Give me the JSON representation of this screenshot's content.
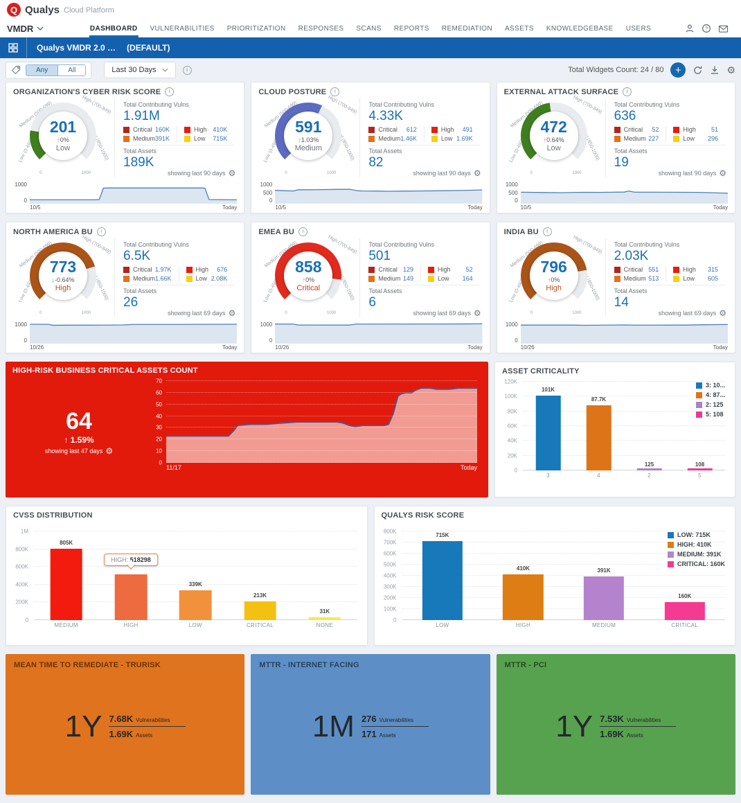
{
  "header": {
    "brand": "Qualys",
    "brand_suffix": "Cloud Platform",
    "module": "VMDR",
    "nav": [
      {
        "label": "DASHBOARD",
        "active": true
      },
      {
        "label": "VULNERABILITIES",
        "active": false
      },
      {
        "label": "PRIORITIZATION",
        "active": false
      },
      {
        "label": "RESPONSES",
        "active": false
      },
      {
        "label": "SCANS",
        "active": false
      },
      {
        "label": "REPORTS",
        "active": false
      },
      {
        "label": "REMEDIATION",
        "active": false
      },
      {
        "label": "ASSETS",
        "active": false
      },
      {
        "label": "KNOWLEDGEBASE",
        "active": false
      },
      {
        "label": "USERS",
        "active": false
      }
    ]
  },
  "dashboard_bar": {
    "title": "Qualys VMDR 2.0 …",
    "badge": "(DEFAULT)"
  },
  "toolbar": {
    "match_options": [
      "Any",
      "All"
    ],
    "selected_match": "Any",
    "date_range": "Last 30 Days",
    "widgets_count": "Total Widgets Count: 24 / 80"
  },
  "vulns_label": "Total Contributing Vulns",
  "assets_label": "Total Assets",
  "gauge_scale": {
    "low": "Low (0-499)",
    "medium": "Medium (500-699)",
    "high": "High (700-849)",
    "critical": "Critical (850-1000)",
    "min": "0",
    "max": "1000"
  },
  "gauge_widgets": [
    {
      "title": "ORGANIZATION'S CYBER RISK SCORE",
      "score": "201",
      "score_value": 201,
      "change_arrow": "↑",
      "change_text": "0%",
      "severity": "Low",
      "severity_color": "#6d7479",
      "arc_color": "#3f7e1e",
      "vulns_total": "1.91M",
      "legend": [
        {
          "label": "Critical",
          "value": "160K",
          "color": "#b3251e"
        },
        {
          "label": "Medium",
          "value": "391K",
          "color": "#e2711d"
        },
        {
          "label": "High",
          "value": "410K",
          "color": "#ea1c0d"
        },
        {
          "label": "Low",
          "value": "715K",
          "color": "#f7cf13"
        }
      ],
      "assets_total": "189K",
      "showing": "showing last 90 days",
      "spark": {
        "yticks": [
          "1000",
          "0"
        ],
        "x_start": "10/5",
        "x_end": "Today",
        "ymax": 1000,
        "points": [
          [
            0,
            150
          ],
          [
            0.31,
            150
          ],
          [
            0.335,
            160
          ],
          [
            0.355,
            690
          ],
          [
            0.37,
            700
          ],
          [
            0.83,
            700
          ],
          [
            0.845,
            690
          ],
          [
            0.865,
            160
          ],
          [
            1,
            150
          ]
        ]
      }
    },
    {
      "title": "CLOUD POSTURE",
      "score": "591",
      "score_value": 591,
      "change_arrow": "↑",
      "change_text": "1.03%",
      "severity": "Medium",
      "severity_color": "#6d7479",
      "arc_color": "#5c6bc0",
      "vulns_total": "4.33K",
      "legend": [
        {
          "label": "Critical",
          "value": "612",
          "color": "#b3251e"
        },
        {
          "label": "Medium",
          "value": "1.46K",
          "color": "#e2711d"
        },
        {
          "label": "High",
          "value": "491",
          "color": "#ea1c0d"
        },
        {
          "label": "Low",
          "value": "1.69K",
          "color": "#f7cf13"
        }
      ],
      "assets_total": "82",
      "showing": "showing last 90 days",
      "spark": {
        "yticks": [
          "1000",
          "500",
          "0"
        ],
        "x_start": "10/5",
        "x_end": "Today",
        "ymax": 1000,
        "points": [
          [
            0,
            590
          ],
          [
            0.05,
            570
          ],
          [
            0.09,
            560
          ],
          [
            0.11,
            615
          ],
          [
            0.2,
            620
          ],
          [
            0.3,
            635
          ],
          [
            0.36,
            640
          ],
          [
            0.4,
            570
          ],
          [
            0.42,
            560
          ],
          [
            0.5,
            555
          ],
          [
            0.55,
            545
          ],
          [
            0.62,
            555
          ],
          [
            0.7,
            560
          ],
          [
            0.8,
            570
          ],
          [
            0.9,
            585
          ],
          [
            1,
            610
          ]
        ]
      }
    },
    {
      "title": "EXTERNAL ATTACK SURFACE",
      "score": "472",
      "score_value": 472,
      "change_arrow": "↑",
      "change_text": "0.64%",
      "severity": "Low",
      "severity_color": "#6d7479",
      "arc_color": "#3f7e1e",
      "vulns_total": "636",
      "legend": [
        {
          "label": "Critical",
          "value": "52",
          "color": "#b3251e"
        },
        {
          "label": "Medium",
          "value": "227",
          "color": "#e2711d"
        },
        {
          "label": "High",
          "value": "51",
          "color": "#ea1c0d"
        },
        {
          "label": "Low",
          "value": "296",
          "color": "#f7cf13"
        }
      ],
      "assets_total": "19",
      "showing": "showing last 90 days",
      "spark": {
        "yticks": [
          "1000",
          "500",
          "0"
        ],
        "x_start": "10/5",
        "x_end": "Today",
        "ymax": 1000,
        "points": [
          [
            0,
            505
          ],
          [
            0.1,
            490
          ],
          [
            0.2,
            480
          ],
          [
            0.3,
            500
          ],
          [
            0.38,
            495
          ],
          [
            0.45,
            505
          ],
          [
            0.5,
            510
          ],
          [
            0.52,
            555
          ],
          [
            0.55,
            505
          ],
          [
            0.65,
            505
          ],
          [
            0.75,
            500
          ],
          [
            0.85,
            495
          ],
          [
            0.92,
            480
          ],
          [
            1,
            455
          ]
        ]
      }
    },
    {
      "title": "NORTH AMERICA BU",
      "score": "773",
      "score_value": 773,
      "change_arrow": "↓",
      "change_text": "-0.64%",
      "severity": "High",
      "severity_color": "#a9551e",
      "arc_color": "#aa5419",
      "vulns_total": "6.5K",
      "legend": [
        {
          "label": "Critical",
          "value": "1.97K",
          "color": "#b3251e"
        },
        {
          "label": "Medium",
          "value": "1.66K",
          "color": "#e2711d"
        },
        {
          "label": "High",
          "value": "676",
          "color": "#ea1c0d"
        },
        {
          "label": "Low",
          "value": "2.08K",
          "color": "#f7cf13"
        }
      ],
      "assets_total": "26",
      "showing": "showing last 69 days",
      "spark": {
        "yticks": [
          "1000",
          "0"
        ],
        "x_start": "10/26",
        "x_end": "Today",
        "ymax": 1000,
        "points": [
          [
            0,
            870
          ],
          [
            0.09,
            868
          ],
          [
            0.11,
            825
          ],
          [
            0.2,
            828
          ],
          [
            0.35,
            830
          ],
          [
            0.45,
            838
          ],
          [
            0.5,
            862
          ],
          [
            0.7,
            862
          ],
          [
            0.85,
            866
          ],
          [
            1,
            872
          ]
        ]
      }
    },
    {
      "title": "EMEA BU",
      "score": "858",
      "score_value": 858,
      "change_arrow": "↑",
      "change_text": "0%",
      "severity": "Critical",
      "severity_color": "#d2362a",
      "arc_color": "#e02a1d",
      "vulns_total": "501",
      "legend": [
        {
          "label": "Critical",
          "value": "129",
          "color": "#b3251e"
        },
        {
          "label": "Medium",
          "value": "149",
          "color": "#e2711d"
        },
        {
          "label": "High",
          "value": "52",
          "color": "#ea1c0d"
        },
        {
          "label": "Low",
          "value": "164",
          "color": "#f7cf13"
        }
      ],
      "assets_total": "6",
      "showing": "showing last 69 days",
      "spark": {
        "yticks": [
          "1000",
          "0"
        ],
        "x_start": "10/26",
        "x_end": "Today",
        "ymax": 1000,
        "points": [
          [
            0,
            882
          ],
          [
            0.09,
            880
          ],
          [
            0.11,
            835
          ],
          [
            0.36,
            832
          ],
          [
            0.39,
            880
          ],
          [
            0.7,
            882
          ],
          [
            0.9,
            885
          ],
          [
            1,
            890
          ]
        ]
      }
    },
    {
      "title": "INDIA BU",
      "score": "796",
      "score_value": 796,
      "change_arrow": "↑",
      "change_text": "0%",
      "severity": "High",
      "severity_color": "#a9551e",
      "arc_color": "#aa5419",
      "vulns_total": "2.03K",
      "legend": [
        {
          "label": "Critical",
          "value": "551",
          "color": "#b3251e"
        },
        {
          "label": "Medium",
          "value": "513",
          "color": "#e2711d"
        },
        {
          "label": "High",
          "value": "315",
          "color": "#ea1c0d"
        },
        {
          "label": "Low",
          "value": "605",
          "color": "#f7cf13"
        }
      ],
      "assets_total": "14",
      "showing": "showing last 69 days",
      "spark": {
        "yticks": [
          "1000",
          "0"
        ],
        "x_start": "10/26",
        "x_end": "Today",
        "ymax": 1000,
        "points": [
          [
            0,
            832
          ],
          [
            0.25,
            832
          ],
          [
            0.3,
            822
          ],
          [
            0.5,
            838
          ],
          [
            0.55,
            830
          ],
          [
            0.8,
            832
          ],
          [
            0.88,
            848
          ],
          [
            1,
            858
          ]
        ]
      }
    }
  ],
  "high_risk_widget": {
    "title": "HIGH-RISK BUSINESS CRITICAL ASSETS COUNT",
    "value": "64",
    "change_arrow": "↑",
    "change_text": "1.59%",
    "showing": "showing last 47 days",
    "background": "#e11a0c",
    "chart_data": {
      "type": "area",
      "ylim": [
        0,
        70
      ],
      "ytick_step": 10,
      "x_start": "11/17",
      "x_end": "Today",
      "points": [
        [
          0,
          23
        ],
        [
          0.2,
          23
        ],
        [
          0.215,
          27
        ],
        [
          0.23,
          32
        ],
        [
          0.27,
          33
        ],
        [
          0.32,
          33
        ],
        [
          0.37,
          34
        ],
        [
          0.42,
          35
        ],
        [
          0.5,
          35
        ],
        [
          0.55,
          35
        ],
        [
          0.57,
          34
        ],
        [
          0.59,
          32
        ],
        [
          0.61,
          31
        ],
        [
          0.63,
          32
        ],
        [
          0.68,
          32
        ],
        [
          0.7,
          32
        ],
        [
          0.715,
          33
        ],
        [
          0.73,
          42
        ],
        [
          0.745,
          57
        ],
        [
          0.755,
          59
        ],
        [
          0.77,
          60
        ],
        [
          0.79,
          60
        ],
        [
          0.8,
          62
        ],
        [
          0.82,
          64
        ],
        [
          0.85,
          64
        ],
        [
          0.87,
          63
        ],
        [
          0.91,
          63
        ],
        [
          0.94,
          64
        ],
        [
          1,
          64
        ]
      ]
    }
  },
  "asset_criticality": {
    "title": "ASSET CRITICALITY",
    "chart_data": {
      "type": "bar",
      "categories": [
        "3",
        "4",
        "2",
        "5"
      ],
      "values": [
        101000,
        87700,
        125,
        108
      ],
      "value_labels": [
        "101K",
        "87.7K",
        "125",
        "108"
      ],
      "colors": [
        "#1779ba",
        "#dd7418",
        "#ab82c9",
        "#e53d96"
      ],
      "ylim": [
        0,
        120000
      ],
      "yticks": [
        {
          "value": 0,
          "label": "0"
        },
        {
          "value": 20000,
          "label": "20K"
        },
        {
          "value": 40000,
          "label": "40K"
        },
        {
          "value": 60000,
          "label": "60K"
        },
        {
          "value": 80000,
          "label": "80K"
        },
        {
          "value": 100000,
          "label": "100K"
        },
        {
          "value": 120000,
          "label": "120K"
        }
      ],
      "legend": [
        {
          "label": "3: 10...",
          "color": "#1779ba"
        },
        {
          "label": "4: 87...",
          "color": "#dd7418"
        },
        {
          "label": "2: 125",
          "color": "#ab82c9"
        },
        {
          "label": "5: 108",
          "color": "#e53d96"
        }
      ],
      "legend_position": "top-right"
    }
  },
  "cvss_distribution": {
    "title": "CVSS DISTRIBUTION",
    "chart_data": {
      "type": "bar",
      "categories": [
        "MEDIUM",
        "HIGH",
        "LOW",
        "CRITICAL",
        "NONE"
      ],
      "values": [
        805000,
        518298,
        339000,
        213000,
        31000
      ],
      "value_labels": [
        "805K",
        "",
        "339K",
        "213K",
        "31K"
      ],
      "colors": [
        "#f31b0e",
        "#ee6a3f",
        "#f2913b",
        "#f4c113",
        "#f8e84a"
      ],
      "ylim": [
        0,
        1000000
      ],
      "yticks": [
        {
          "value": 0,
          "label": "0"
        },
        {
          "value": 200000,
          "label": "200K"
        },
        {
          "value": 400000,
          "label": "400K"
        },
        {
          "value": 600000,
          "label": "600K"
        },
        {
          "value": 800000,
          "label": "800K"
        },
        {
          "value": 1000000,
          "label": "1M"
        }
      ],
      "tooltip": {
        "bar_index": 1,
        "label": "HIGH:",
        "value": "518298"
      }
    }
  },
  "qualys_risk_score": {
    "title": "QUALYS RISK SCORE",
    "chart_data": {
      "type": "bar",
      "categories": [
        "LOW",
        "HIGH",
        "MEDIUM",
        "CRITICAL"
      ],
      "values": [
        715000,
        410000,
        391000,
        160000
      ],
      "value_labels": [
        "715K",
        "410K",
        "391K",
        "160K"
      ],
      "colors": [
        "#1779ba",
        "#dd7d14",
        "#b583cd",
        "#f53a92"
      ],
      "ylim": [
        0,
        800000
      ],
      "yticks": [
        {
          "value": 0,
          "label": "0"
        },
        {
          "value": 100000,
          "label": "100K"
        },
        {
          "value": 200000,
          "label": "200K"
        },
        {
          "value": 300000,
          "label": "300K"
        },
        {
          "value": 400000,
          "label": "400K"
        },
        {
          "value": 500000,
          "label": "500K"
        },
        {
          "value": 600000,
          "label": "600K"
        },
        {
          "value": 700000,
          "label": "700K"
        },
        {
          "value": 800000,
          "label": "800K"
        }
      ],
      "legend": [
        {
          "label": "LOW: 715K",
          "color": "#1779ba"
        },
        {
          "label": "HIGH: 410K",
          "color": "#dd7d14"
        },
        {
          "label": "MEDIUM: 391K",
          "color": "#b583cd"
        },
        {
          "label": "CRITICAL: 160K",
          "color": "#f53a92"
        }
      ],
      "legend_position": "top-right"
    }
  },
  "mttr_widgets": [
    {
      "title": "MEAN TIME TO REMEDIATE - TRURISK",
      "background": "#e0731d",
      "value": "1Y",
      "numerator": "7.68K",
      "numerator_label": "Vulnerabilities",
      "denominator": "1.69K",
      "denominator_label": "Assets"
    },
    {
      "title": "MTTR - INTERNET FACING",
      "background": "#5d8fc6",
      "value": "1M",
      "numerator": "276",
      "numerator_label": "Vulnerabilities",
      "denominator": "171",
      "denominator_label": "Assets"
    },
    {
      "title": "MTTR - PCI",
      "background": "#57a24e",
      "value": "1Y",
      "numerator": "7.53K",
      "numerator_label": "Vulnerabilities",
      "denominator": "1.69K",
      "denominator_label": "Assets"
    }
  ]
}
